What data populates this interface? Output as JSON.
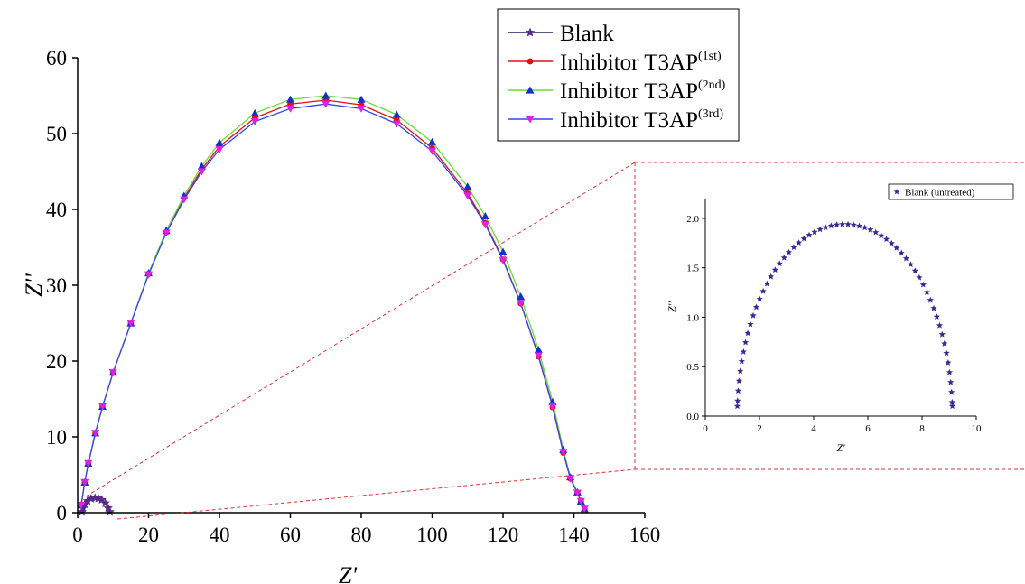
{
  "chart_data": [
    {
      "type": "line",
      "xlabel": "Z'",
      "ylabel": "Z''",
      "xlim": [
        0,
        160
      ],
      "ylim": [
        0,
        60
      ],
      "xticks": [
        "0",
        "20",
        "40",
        "60",
        "80",
        "100",
        "120",
        "140",
        "160"
      ],
      "yticks": [
        "0",
        "10",
        "20",
        "30",
        "40",
        "50",
        "60"
      ],
      "legend_position": "top-right",
      "series": [
        {
          "name": "Blank",
          "sup": "",
          "color": "#1f1f5c",
          "marker": "star",
          "x": [
            1.2,
            1.5,
            2.0,
            2.8,
            3.8,
            4.9,
            5.8,
            6.8,
            7.8,
            8.6,
            9.1
          ],
          "y": [
            0.1,
            0.6,
            1.1,
            1.55,
            1.85,
            1.94,
            1.9,
            1.7,
            1.25,
            0.6,
            0.1
          ]
        },
        {
          "name": "Inhibitor T3AP",
          "sup": "(1st)",
          "color": "#e01010",
          "marker": "circle",
          "x": [
            1,
            2,
            3,
            5,
            7,
            10,
            15,
            20,
            25,
            30,
            35,
            40,
            50,
            60,
            70,
            80,
            90,
            100,
            110,
            115,
            120,
            125,
            130,
            134,
            137,
            139,
            141,
            142,
            143
          ],
          "y": [
            1,
            4,
            6.5,
            10.5,
            14,
            18.5,
            25,
            31.5,
            37,
            41.5,
            45.3,
            48.3,
            52.1,
            53.9,
            54.4,
            53.8,
            51.8,
            48.1,
            42.1,
            38.2,
            33.4,
            27.6,
            20.6,
            13.9,
            7.9,
            4.5,
            2.6,
            1.5,
            0.5
          ]
        },
        {
          "name": "Inhibitor T3AP",
          "sup": "(2nd)",
          "color": "#66dd33",
          "marker": "triangle-up",
          "x": [
            1,
            2,
            3,
            5,
            7,
            10,
            15,
            20,
            25,
            30,
            35,
            40,
            50,
            60,
            70,
            80,
            90,
            100,
            110,
            115,
            120,
            125,
            130,
            134,
            137,
            139,
            141,
            142,
            143
          ],
          "y": [
            1,
            4,
            6.5,
            10.5,
            14,
            18.5,
            25,
            31.6,
            37.2,
            41.8,
            45.7,
            48.8,
            52.7,
            54.5,
            55,
            54.5,
            52.5,
            48.9,
            43,
            39.1,
            34.4,
            28.5,
            21.5,
            14.6,
            8.3,
            4.7,
            2.7,
            1.5,
            0.5
          ]
        },
        {
          "name": "Inhibitor T3AP",
          "sup": "(3rd)",
          "color": "#3344ee",
          "marker": "triangle-down",
          "x": [
            1,
            2,
            3,
            5,
            7,
            10,
            15,
            20,
            25,
            30,
            35,
            40,
            50,
            60,
            70,
            80,
            90,
            100,
            110,
            115,
            120,
            125,
            130,
            134,
            137,
            139,
            141,
            142,
            143
          ],
          "y": [
            1,
            4,
            6.5,
            10.5,
            14,
            18.5,
            25,
            31.4,
            36.9,
            41.3,
            45,
            47.9,
            51.6,
            53.3,
            53.9,
            53.3,
            51.3,
            47.7,
            41.8,
            38,
            33.3,
            27.6,
            20.7,
            14,
            8,
            4.5,
            2.6,
            1.5,
            0.5
          ]
        }
      ]
    },
    {
      "type": "scatter",
      "xlabel": "Z'",
      "ylabel": "Z''",
      "xlim": [
        0,
        10
      ],
      "ylim": [
        0,
        2.2
      ],
      "xticks": [
        "0",
        "2",
        "4",
        "6",
        "8",
        "10"
      ],
      "yticks": [
        "0.0",
        "0.5",
        "1.0",
        "1.5",
        "2.0"
      ],
      "legend_position": "top-right",
      "series": [
        {
          "name": "Blank (untreated)",
          "color": "#3a2a99",
          "marker": "star",
          "center": [
            5.15,
            0
          ],
          "radius": 3.97,
          "y_scale": 0.4887,
          "point_count": 60
        }
      ]
    }
  ]
}
